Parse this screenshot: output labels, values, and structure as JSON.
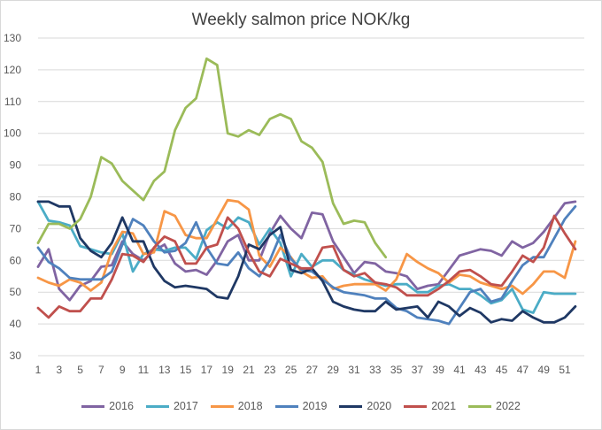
{
  "chart_data": {
    "type": "line",
    "title": "Weekly salmon price NOK/kg",
    "xlabel": "",
    "ylabel": "",
    "ylim": [
      30,
      130
    ],
    "yticks": [
      30,
      40,
      50,
      60,
      70,
      80,
      90,
      100,
      110,
      120,
      130
    ],
    "xlim": [
      1,
      52
    ],
    "xticks": [
      1,
      3,
      5,
      7,
      9,
      11,
      13,
      15,
      17,
      19,
      21,
      23,
      25,
      27,
      29,
      31,
      33,
      35,
      37,
      39,
      41,
      43,
      45,
      47,
      49,
      51
    ],
    "grid": "horizontal",
    "legend": "bottom",
    "series": [
      {
        "name": "2016",
        "color": "#8064a2",
        "values": [
          58,
          63.5,
          51,
          47.5,
          52,
          53.5,
          58,
          58.5,
          66,
          62,
          60,
          63,
          65,
          59,
          56.5,
          57,
          55.5,
          60,
          66,
          68,
          60,
          60,
          68.5,
          74,
          70,
          67,
          75,
          74.5,
          66,
          61,
          56,
          59.5,
          59,
          56.5,
          56,
          55,
          51,
          52,
          52.5,
          57,
          61.5,
          62.5,
          63.5,
          63,
          61.5,
          66,
          64,
          65.5,
          69,
          73.5,
          78,
          78.5
        ]
      },
      {
        "name": "2017",
        "color": "#4bacc6",
        "values": [
          78.5,
          72.5,
          72,
          71,
          64.5,
          63.5,
          62.5,
          62,
          68.5,
          56.5,
          62,
          63.5,
          63,
          64,
          64,
          60.5,
          69.5,
          72,
          70,
          73.5,
          72,
          65,
          70,
          65.5,
          55,
          62,
          58,
          60,
          60,
          57,
          55.5,
          54,
          53,
          52,
          52.5,
          52.5,
          50,
          50,
          52,
          52.5,
          51,
          51,
          49,
          46.5,
          47.5,
          51,
          44.5,
          43.5,
          50,
          49.5,
          49.5,
          49.5
        ]
      },
      {
        "name": "2018",
        "color": "#f79646",
        "values": [
          54.5,
          53,
          52,
          54,
          53,
          50.5,
          53,
          63,
          69,
          68.5,
          62,
          62.5,
          75.5,
          74,
          68,
          67,
          67,
          73,
          79,
          78.5,
          76,
          61.5,
          58,
          64,
          61,
          56.5,
          54.5,
          55,
          51,
          52,
          52.5,
          52.5,
          52.5,
          50.5,
          54,
          62,
          59.5,
          57.5,
          56,
          53,
          55.5,
          55,
          53,
          52,
          51,
          52,
          49.5,
          52.5,
          56.5,
          56.5,
          54.5,
          66
        ]
      },
      {
        "name": "2019",
        "color": "#4f81bd",
        "values": [
          64,
          59.5,
          57.5,
          54.5,
          54,
          54,
          54,
          56.5,
          65,
          73,
          71,
          66,
          62.5,
          63,
          65.5,
          72,
          64,
          59,
          58.5,
          62.5,
          57.5,
          55,
          60,
          68,
          60.5,
          57,
          56.5,
          54,
          51.5,
          50,
          49.5,
          49,
          48,
          48,
          45,
          44,
          42,
          41.5,
          41,
          40,
          45,
          50,
          51,
          47,
          48,
          53.5,
          58.5,
          61,
          61,
          67,
          73,
          77
        ]
      },
      {
        "name": "2020",
        "color": "#1f3864",
        "values": [
          78.5,
          78.5,
          77,
          77,
          67,
          63,
          61,
          65.5,
          73.5,
          66,
          66,
          58,
          53.5,
          51.5,
          52,
          51.5,
          51,
          48.5,
          48,
          55,
          65,
          63.5,
          68,
          70.5,
          57,
          56,
          57.5,
          53.5,
          47,
          45.5,
          44.5,
          44,
          44,
          47,
          44.5,
          45,
          45.5,
          42,
          47,
          45.5,
          42.5,
          45,
          43.5,
          40.5,
          41.5,
          41,
          44,
          42,
          40.5,
          40.5,
          42,
          45.5
        ]
      },
      {
        "name": "2021",
        "color": "#c0504d",
        "values": [
          45,
          42,
          45.5,
          44,
          44,
          48,
          48,
          54,
          62,
          61.5,
          59.5,
          64,
          67.5,
          66,
          59,
          59,
          64,
          65,
          73.5,
          70,
          62.5,
          56.5,
          55,
          60.5,
          59,
          57.5,
          57.5,
          64,
          64.5,
          57,
          55,
          56,
          53,
          52.5,
          51.5,
          49,
          49,
          49,
          51,
          53.5,
          56.5,
          57,
          55,
          52.5,
          52,
          56.5,
          61.5,
          59.5,
          64,
          74,
          68.5,
          63.5
        ]
      },
      {
        "name": "2022",
        "color": "#9bbb59",
        "values": [
          65.5,
          71.5,
          71.5,
          70,
          73,
          80,
          92.5,
          90.5,
          85,
          82,
          79,
          85,
          88,
          101,
          108,
          111,
          123.5,
          121.5,
          100,
          99,
          101,
          99.5,
          104.5,
          106,
          104.5,
          97.5,
          95.5,
          91,
          78,
          71.5,
          72.5,
          72,
          65.5,
          61
        ]
      }
    ]
  }
}
